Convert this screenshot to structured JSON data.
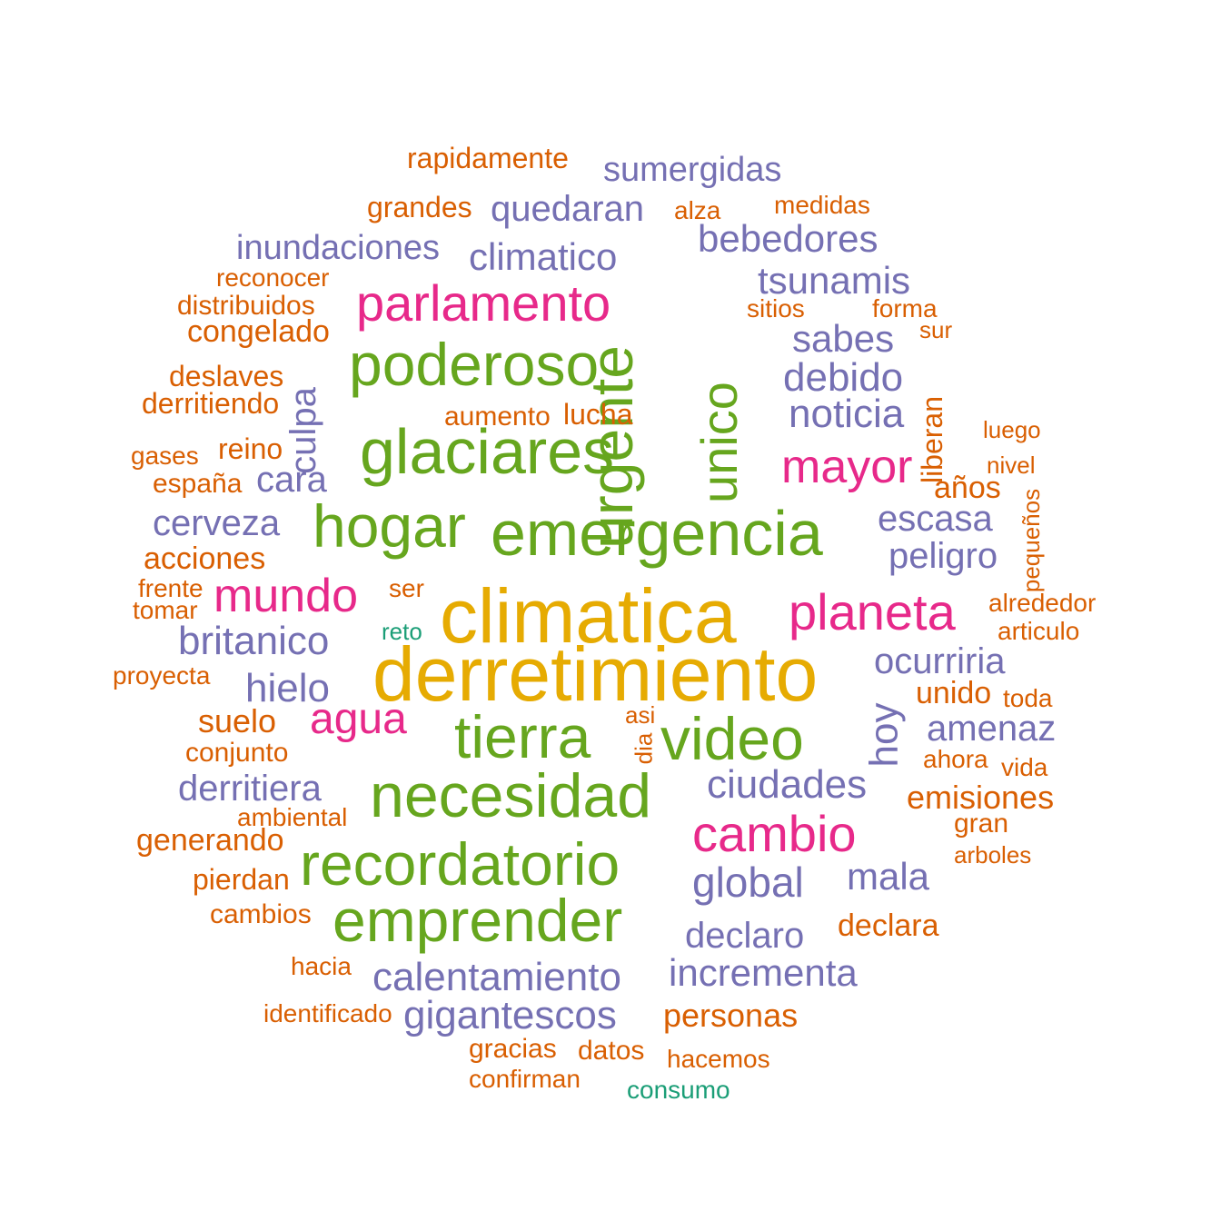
{
  "palette": {
    "yellow": "#e6ab02",
    "green": "#66a61e",
    "magenta": "#e7298a",
    "purple": "#7570b3",
    "orange": "#d95f02",
    "teal": "#1b9e77"
  },
  "words": {
    "climatica": "climatica",
    "derretimiento": "derretimiento",
    "emergencia": "emergencia",
    "glaciares": "glaciares",
    "urgente": "urgente",
    "unico": "unico",
    "poderoso": "poderoso",
    "hogar": "hogar",
    "tierra": "tierra",
    "video": "video",
    "necesidad": "necesidad",
    "recordatorio": "recordatorio",
    "emprender": "emprender",
    "parlamento": "parlamento",
    "mayor": "mayor",
    "mundo": "mundo",
    "planeta": "planeta",
    "agua": "agua",
    "cambio": "cambio",
    "sumergidas": "sumergidas",
    "quedaran": "quedaran",
    "inundaciones": "inundaciones",
    "climatico": "climatico",
    "bebedores": "bebedores",
    "tsunamis": "tsunamis",
    "sabes": "sabes",
    "debido": "debido",
    "noticia": "noticia",
    "culpa": "culpa",
    "cara": "cara",
    "cerveza": "cerveza",
    "escasa": "escasa",
    "peligro": "peligro",
    "britanico": "britanico",
    "ocurriria": "ocurriria",
    "hielo": "hielo",
    "hoy": "hoy",
    "amenaz": "amenaz",
    "derritiera": "derritiera",
    "ciudades": "ciudades",
    "global": "global",
    "mala": "mala",
    "declaro": "declaro",
    "calentamiento": "calentamiento",
    "incrementa": "incrementa",
    "gigantescos": "gigantescos",
    "rapidamente": "rapidamente",
    "grandes": "grandes",
    "alza": "alza",
    "medidas": "medidas",
    "reconocer": "reconocer",
    "distribuidos": "distribuidos",
    "congelado": "congelado",
    "sitios": "sitios",
    "forma": "forma",
    "sur": "sur",
    "deslaves": "deslaves",
    "derritiendo": "derritiendo",
    "aumento": "aumento",
    "lucha": "lucha",
    "liberan": "liberan",
    "luego": "luego",
    "gases": "gases",
    "reino": "reino",
    "nivel": "nivel",
    "espana": "españa",
    "anos": "años",
    "pequenos": "pequeños",
    "acciones": "acciones",
    "frente": "frente",
    "ser": "ser",
    "tomar": "tomar",
    "alrededor": "alrededor",
    "articulo": "articulo",
    "proyecta": "proyecta",
    "unido": "unido",
    "toda": "toda",
    "suelo": "suelo",
    "asi": "asi",
    "dia": "dia",
    "conjunto": "conjunto",
    "ahora": "ahora",
    "vida": "vida",
    "emisiones": "emisiones",
    "ambiental": "ambiental",
    "gran": "gran",
    "generando": "generando",
    "arboles": "arboles",
    "pierdan": "pierdan",
    "cambios": "cambios",
    "declara": "declara",
    "hacia": "hacia",
    "identificado": "identificado",
    "personas": "personas",
    "gracias": "gracias",
    "datos": "datos",
    "hacemos": "hacemos",
    "confirman": "confirman",
    "reto": "reto",
    "consumo": "consumo"
  }
}
